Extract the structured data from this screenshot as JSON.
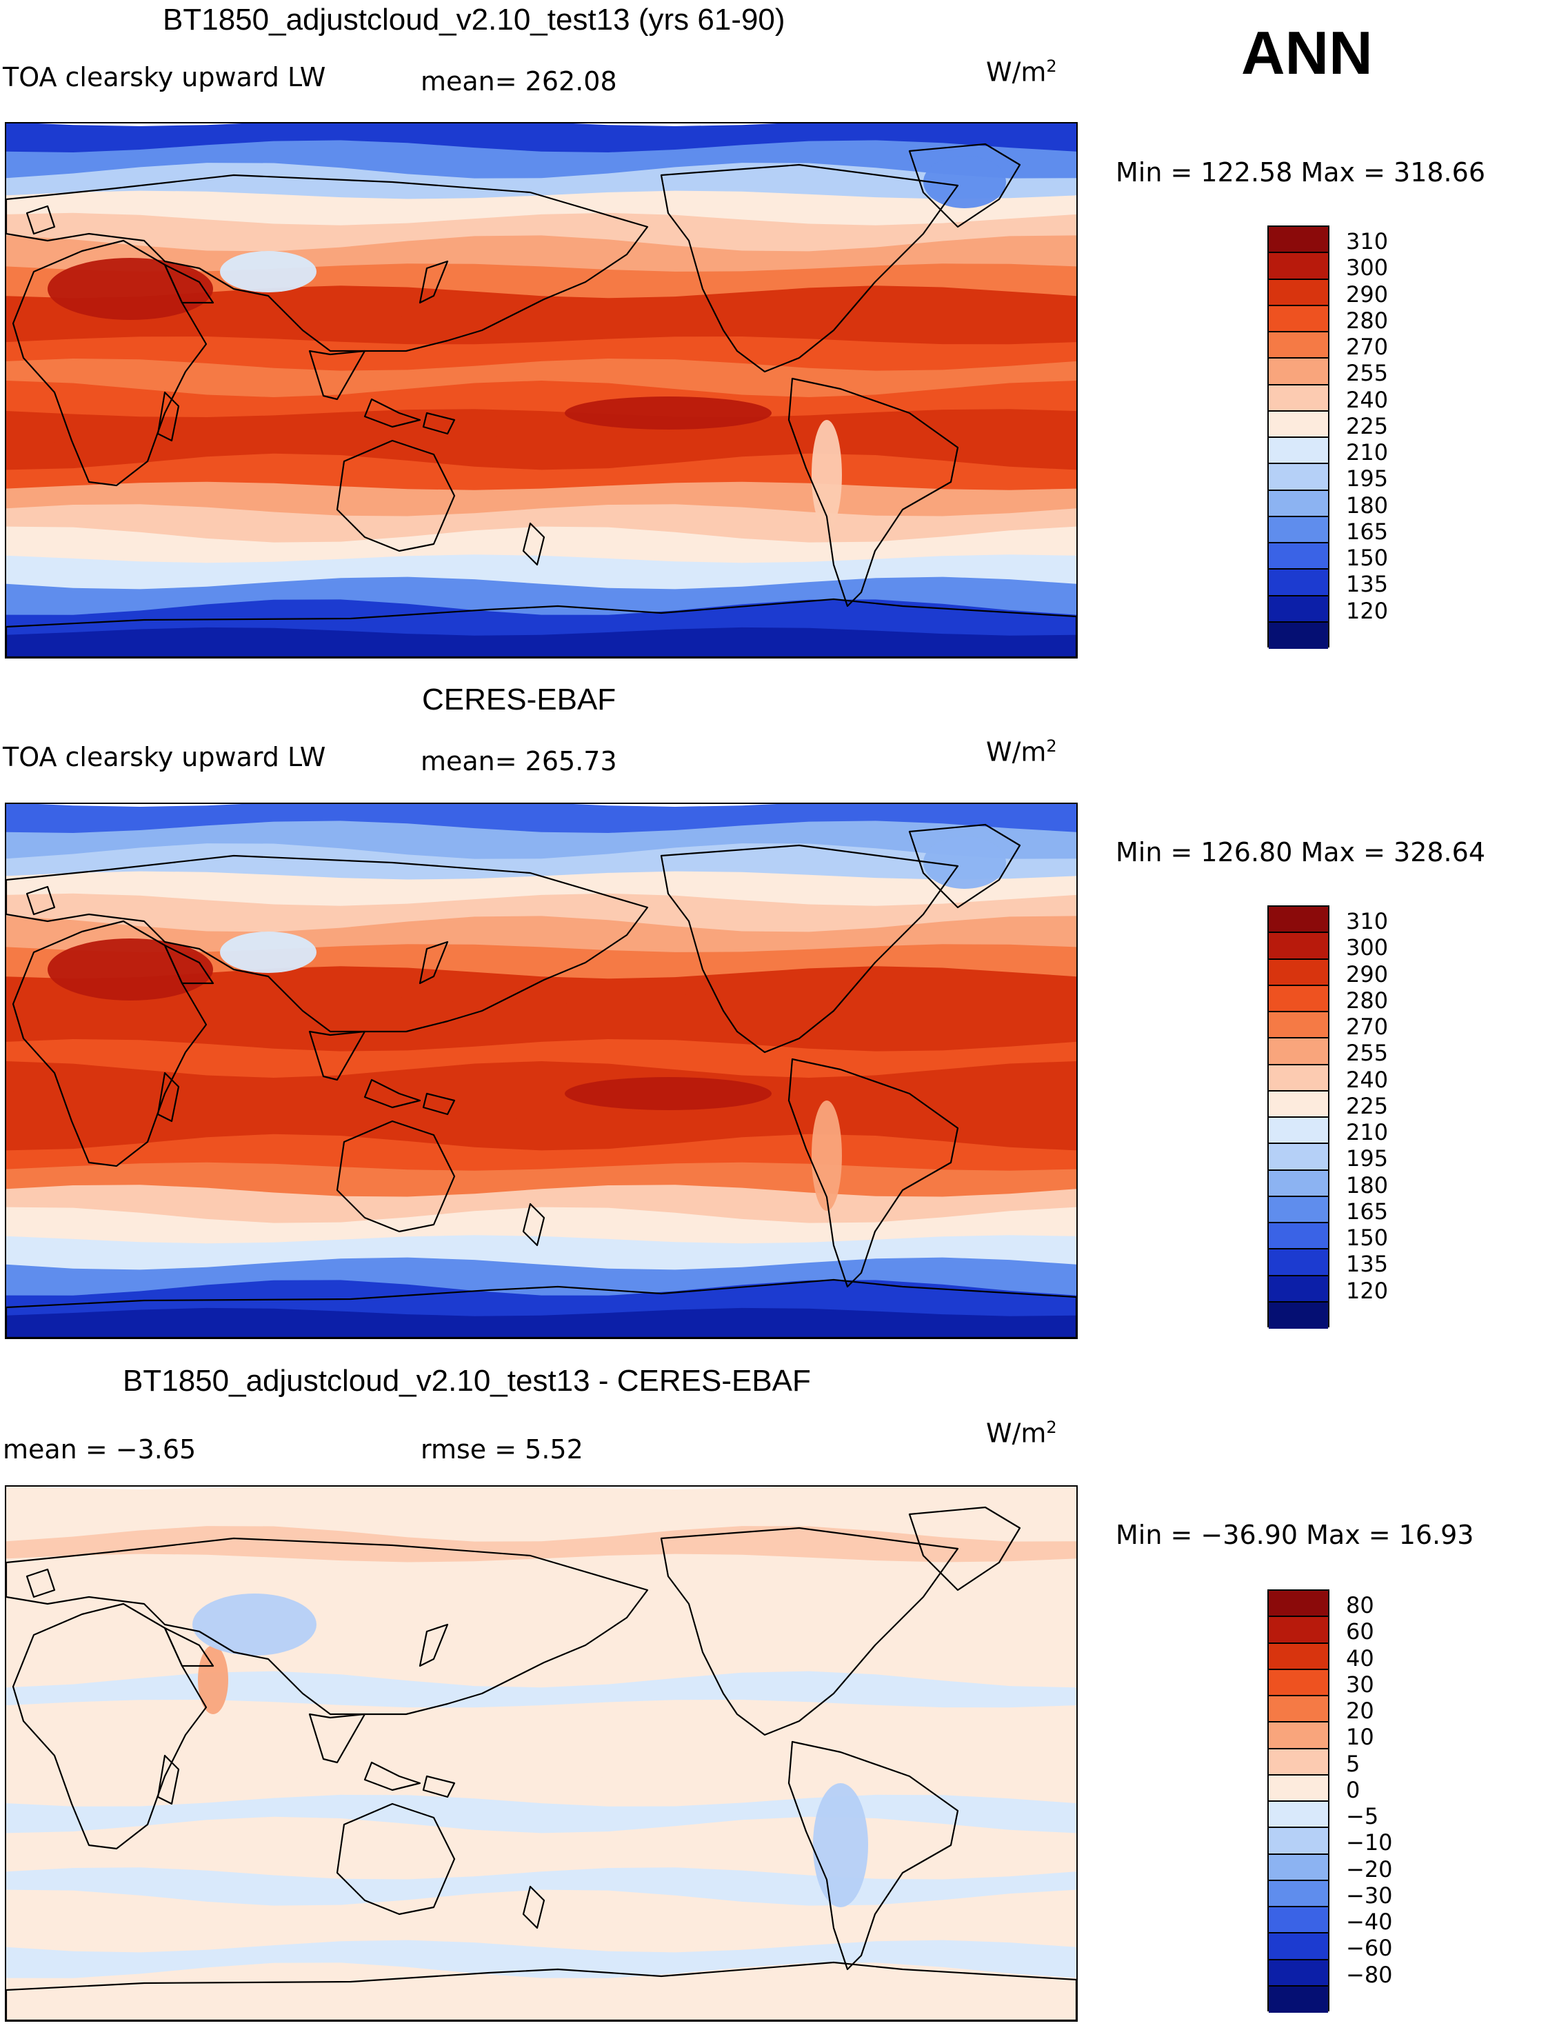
{
  "season": "ANN",
  "units_main": "W/m",
  "units_sup": "2",
  "panels": [
    {
      "title": "BT1850_adjustcloud_v2.10_test13 (yrs 61-90)",
      "variable": "TOA clearsky upward LW",
      "stat1": "mean= 262.08",
      "stat2": "",
      "minmax": "Min = 122.58 Max = 318.66",
      "colorbar": {
        "levels": [
          "310",
          "300",
          "290",
          "280",
          "270",
          "255",
          "240",
          "225",
          "210",
          "195",
          "180",
          "165",
          "150",
          "135",
          "120"
        ],
        "colors": [
          "#8b0a0a",
          "#b81a0c",
          "#d8340e",
          "#ee5220",
          "#f57a45",
          "#f9a57c",
          "#fccbb1",
          "#fdebdd",
          "#d9e9fb",
          "#b5d0f7",
          "#8cb3f2",
          "#5f8ded",
          "#3a63e6",
          "#1c3bd0",
          "#0c1fa8",
          "#050f73"
        ]
      },
      "field": {
        "zonal_levels": [
          2,
          4,
          6,
          8,
          9,
          10,
          11,
          13,
          13,
          12,
          11,
          12,
          13,
          13,
          12,
          10,
          9,
          8,
          7,
          4,
          2,
          1
        ],
        "features": [
          {
            "name": "sahara-arabia-max",
            "level": 14
          },
          {
            "name": "tibet-min",
            "level": 7
          },
          {
            "name": "greenland-min",
            "level": 4
          },
          {
            "name": "tropical-pacific-max",
            "level": 14
          },
          {
            "name": "andes-min",
            "level": 9
          }
        ]
      }
    },
    {
      "title": "CERES-EBAF",
      "variable": "TOA clearsky upward LW",
      "stat1": "mean= 265.73",
      "stat2": "",
      "minmax": "Min = 126.80 Max = 328.64",
      "colorbar": {
        "levels": [
          "310",
          "300",
          "290",
          "280",
          "270",
          "255",
          "240",
          "225",
          "210",
          "195",
          "180",
          "165",
          "150",
          "135",
          "120"
        ],
        "colors": [
          "#8b0a0a",
          "#b81a0c",
          "#d8340e",
          "#ee5220",
          "#f57a45",
          "#f9a57c",
          "#fccbb1",
          "#fdebdd",
          "#d9e9fb",
          "#b5d0f7",
          "#8cb3f2",
          "#5f8ded",
          "#3a63e6",
          "#1c3bd0",
          "#0c1fa8",
          "#050f73"
        ]
      },
      "field": {
        "zonal_levels": [
          3,
          5,
          6,
          8,
          9,
          10,
          11,
          13,
          13,
          13,
          12,
          13,
          13,
          13,
          12,
          11,
          9,
          8,
          7,
          4,
          2,
          1
        ],
        "features": [
          {
            "name": "sahara-arabia-max",
            "level": 14
          },
          {
            "name": "tibet-min",
            "level": 7
          },
          {
            "name": "greenland-min",
            "level": 5
          },
          {
            "name": "tropical-pacific-max",
            "level": 14
          },
          {
            "name": "andes-min",
            "level": 10
          }
        ]
      }
    },
    {
      "title": "BT1850_adjustcloud_v2.10_test13 - CERES-EBAF",
      "variable": "mean =   −3.65",
      "stat1": "rmse =    5.52",
      "stat2": "",
      "minmax": "Min = −36.90 Max =   16.93",
      "colorbar": {
        "levels": [
          "80",
          "60",
          "40",
          "30",
          "20",
          "10",
          "5",
          "0",
          "−5",
          "−10",
          "−20",
          "−30",
          "−40",
          "−60",
          "−80"
        ],
        "colors": [
          "#8b0a0a",
          "#b81a0c",
          "#d8340e",
          "#ee5220",
          "#f57a45",
          "#f9a57c",
          "#fccbb1",
          "#fdebdd",
          "#d9e9fb",
          "#b5d0f7",
          "#8cb3f2",
          "#5f8ded",
          "#3a63e6",
          "#1c3bd0",
          "#0c1fa8",
          "#050f73"
        ]
      },
      "field": {
        "zonal_levels": [
          8,
          8,
          9,
          8,
          8,
          8,
          8,
          8,
          7,
          8,
          8,
          8,
          8,
          7,
          8,
          8,
          7,
          8,
          8,
          7,
          8,
          8
        ],
        "features": [
          {
            "name": "arabia-positive",
            "level": 10
          },
          {
            "name": "tibet-negative",
            "level": 6
          },
          {
            "name": "andes-negative",
            "level": 6
          }
        ]
      }
    }
  ]
}
